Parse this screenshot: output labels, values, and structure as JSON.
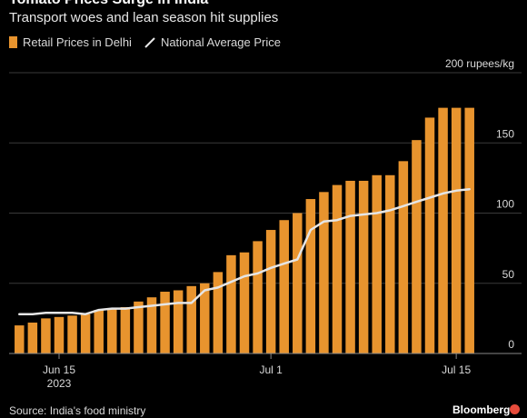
{
  "title": "Tomato Prices Surge in India",
  "subtitle": "Transport woes and lean season hit supplies",
  "legend": {
    "bar_label": "Retail Prices in Delhi",
    "line_label": "National Average Price"
  },
  "source": "Source: India's food ministry",
  "logo": "Bloomberg",
  "colors": {
    "bar": "#e8942e",
    "line": "#e6e6e6",
    "background": "#000000",
    "grid": "#3a3a3a"
  },
  "chart_data": {
    "type": "bar",
    "unit_label": "200 rupees/kg",
    "ylim": [
      0,
      200
    ],
    "yticks": [
      0,
      50,
      100,
      150,
      200
    ],
    "ytick_labels": [
      "0",
      "50",
      "100",
      "150"
    ],
    "x": [
      "2023-06-12",
      "2023-06-13",
      "2023-06-14",
      "2023-06-15",
      "2023-06-16",
      "2023-06-17",
      "2023-06-18",
      "2023-06-19",
      "2023-06-20",
      "2023-06-21",
      "2023-06-22",
      "2023-06-23",
      "2023-06-24",
      "2023-06-25",
      "2023-06-26",
      "2023-06-27",
      "2023-06-28",
      "2023-06-29",
      "2023-06-30",
      "2023-07-01",
      "2023-07-02",
      "2023-07-03",
      "2023-07-04",
      "2023-07-05",
      "2023-07-06",
      "2023-07-07",
      "2023-07-08",
      "2023-07-09",
      "2023-07-10",
      "2023-07-11",
      "2023-07-12",
      "2023-07-13",
      "2023-07-14",
      "2023-07-15",
      "2023-07-16"
    ],
    "xtick_labels": [
      {
        "date": "2023-06-15",
        "label": "Jun 15",
        "sublabel": "2023"
      },
      {
        "date": "2023-07-01",
        "label": "Jul 1",
        "sublabel": ""
      },
      {
        "date": "2023-07-15",
        "label": "Jul 15",
        "sublabel": ""
      }
    ],
    "series": [
      {
        "name": "Retail Prices in Delhi",
        "type": "bar",
        "values": [
          20,
          22,
          25,
          26,
          27,
          28,
          31,
          32,
          33,
          37,
          40,
          44,
          45,
          48,
          50,
          58,
          70,
          72,
          80,
          88,
          95,
          100,
          110,
          115,
          120,
          123,
          123,
          127,
          127,
          137,
          152,
          168,
          175,
          175,
          175
        ]
      },
      {
        "name": "National Average Price",
        "type": "line",
        "values": [
          28,
          28,
          29,
          29,
          29,
          28,
          31,
          32,
          32,
          33,
          34,
          35,
          36,
          36,
          45,
          47,
          51,
          55,
          57,
          61,
          64,
          67,
          88,
          94,
          95,
          98,
          99,
          100,
          102,
          105,
          108,
          111,
          114,
          116,
          117
        ]
      }
    ]
  }
}
